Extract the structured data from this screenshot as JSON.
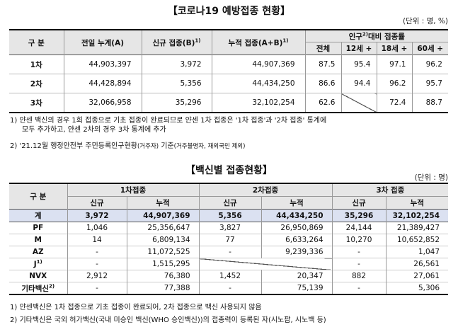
{
  "section1": {
    "title": "【코로나19 예방접종 현황】",
    "unit": "(단위 : 명, %)",
    "headers": {
      "category": "구 분",
      "prev_cum": "전일 누계(A)",
      "new": "신규 접종(B)",
      "new_sup": "1)",
      "cum": "누적 접종(A+B)",
      "cum_sup": "1)",
      "ratio_group": "인구",
      "ratio_group_sup": "2)",
      "ratio_group_tail": "대비 접종률",
      "total": "전체",
      "age12": "12세 +",
      "age18": "18세 +",
      "age60": "60세 +"
    },
    "rows": [
      {
        "label": "1차",
        "prev": "44,903,397",
        "new": "3,972",
        "cum": "44,907,369",
        "total": "87.5",
        "a12": "95.4",
        "a18": "97.1",
        "a60": "96.2"
      },
      {
        "label": "2차",
        "prev": "44,428,894",
        "new": "5,356",
        "cum": "44,434,250",
        "total": "86.6",
        "a12": "94.4",
        "a18": "96.2",
        "a60": "95.7"
      },
      {
        "label": "3차",
        "prev": "32,066,958",
        "new": "35,296",
        "cum": "32,102,254",
        "total": "62.6",
        "a12": "",
        "a18": "72.4",
        "a60": "88.7"
      }
    ],
    "notes": {
      "n1a": "1) 얀센 백신의 경우 1회 접종으로 기초 접종이 완료되므로 얀센 1차 접종은 '1차 접종'과 '2차 접종' 통계에",
      "n1b": "모두 추가하고, 얀센 2차의 경우 3차 통계에 추가",
      "n2a": "2) '21.12월 행정안전부 주민등록인구현황",
      "n2b": "(거주자)",
      "n2c": " 기준",
      "n2d": "(거주불명자, 재외국민 제외)"
    }
  },
  "section2": {
    "title": "【백신별 접종현황】",
    "unit": "(단위 : 명)",
    "headers": {
      "category": "구 분",
      "dose1": "1차접종",
      "dose2": "2차접종",
      "dose3": "3차 접종",
      "new": "신규",
      "cum": "누적"
    },
    "total_row": {
      "label": "계",
      "d1n": "3,972",
      "d1c": "44,907,369",
      "d2n": "5,356",
      "d2c": "44,434,250",
      "d3n": "35,296",
      "d3c": "32,102,254"
    },
    "rows": [
      {
        "label": "PF",
        "sup": "",
        "d1n": "1,046",
        "d1c": "25,356,647",
        "d2n": "3,827",
        "d2c": "26,950,869",
        "d3n": "24,144",
        "d3c": "21,389,427"
      },
      {
        "label": "M",
        "sup": "",
        "d1n": "14",
        "d1c": "6,809,134",
        "d2n": "77",
        "d2c": "6,633,264",
        "d3n": "10,270",
        "d3c": "10,652,852"
      },
      {
        "label": "AZ",
        "sup": "",
        "d1n": "-",
        "d1c": "11,072,525",
        "d2n": "-",
        "d2c": "9,239,336",
        "d3n": "-",
        "d3c": "1,047"
      },
      {
        "label": "J",
        "sup": "1)",
        "d1n": "-",
        "d1c": "1,515,295",
        "d2n": "",
        "d2c": "",
        "d3n": "-",
        "d3c": "26,561"
      },
      {
        "label": "NVX",
        "sup": "",
        "d1n": "2,912",
        "d1c": "76,380",
        "d2n": "1,452",
        "d2c": "20,347",
        "d3n": "882",
        "d3c": "27,061"
      },
      {
        "label": "기타백신",
        "sup": "2)",
        "d1n": "-",
        "d1c": "77,388",
        "d2n": "-",
        "d2c": "75,139",
        "d3n": "-",
        "d3c": "5,306"
      }
    ],
    "notes": {
      "n1": "1) 얀센백신은 1차 접종으로 기초 접종이 완료되어, 2차 접종으로 백신 사용되지 않음",
      "n2": "2) 기타백신은 국외 허가백신(국내 미승인 백신(WHO 승인백신))의 접종력이 등록된 자(시노팜, 시노백 등)"
    }
  },
  "colors": {
    "header_bg": "#e6e6e6",
    "total_row_bg": "#dbe1f1"
  }
}
